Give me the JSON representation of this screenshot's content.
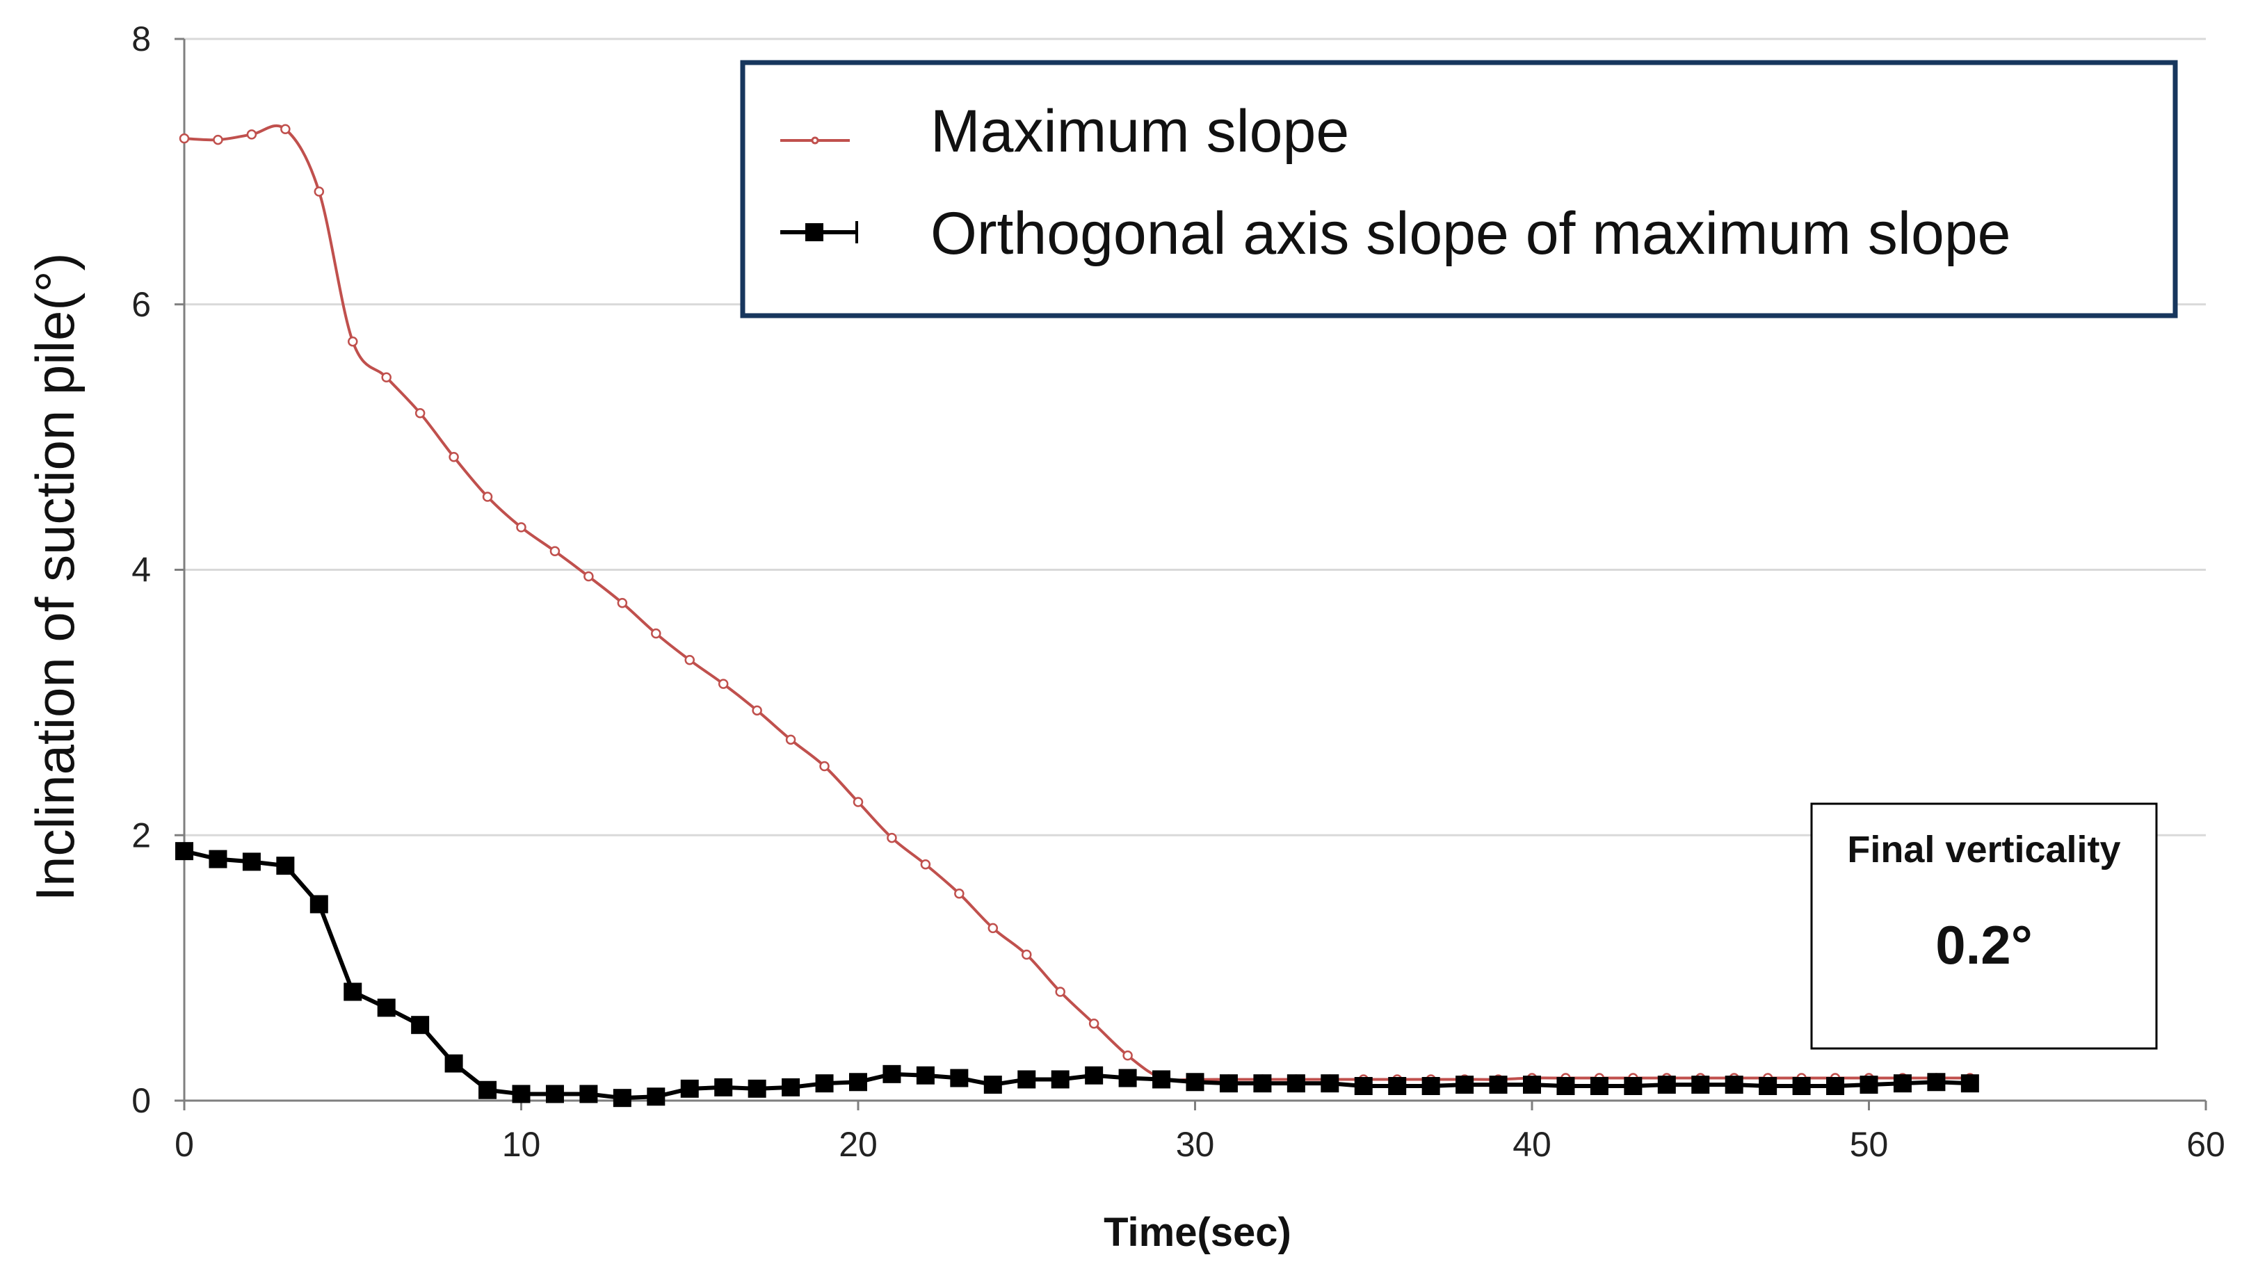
{
  "chart_data": {
    "type": "line",
    "xlabel": "Time(sec)",
    "ylabel": "Inclination of suction pile(°)",
    "xlim": [
      0,
      60
    ],
    "ylim": [
      0,
      8
    ],
    "xticks": [
      0,
      10,
      20,
      30,
      40,
      50,
      60
    ],
    "yticks": [
      0,
      2,
      4,
      6,
      8
    ],
    "grid": "horizontal",
    "legend_position": "top-right",
    "x": [
      0,
      1,
      2,
      3,
      4,
      5,
      6,
      7,
      8,
      9,
      10,
      11,
      12,
      13,
      14,
      15,
      16,
      17,
      18,
      19,
      20,
      21,
      22,
      23,
      24,
      25,
      26,
      27,
      28,
      29,
      30,
      31,
      32,
      33,
      34,
      35,
      36,
      37,
      38,
      39,
      40,
      41,
      42,
      43,
      44,
      45,
      46,
      47,
      48,
      49,
      50,
      51,
      52,
      53
    ],
    "series": [
      {
        "name": "Maximum slope",
        "color": "#c0504d",
        "marker": "open-circle",
        "smooth": true,
        "values": [
          7.25,
          7.24,
          7.28,
          7.32,
          6.85,
          5.72,
          5.45,
          5.18,
          4.85,
          4.55,
          4.32,
          4.14,
          3.95,
          3.75,
          3.52,
          3.32,
          3.14,
          2.94,
          2.72,
          2.52,
          2.25,
          1.98,
          1.78,
          1.56,
          1.3,
          1.1,
          0.82,
          0.58,
          0.34,
          0.17,
          0.16,
          0.16,
          0.16,
          0.16,
          0.16,
          0.16,
          0.16,
          0.16,
          0.16,
          0.16,
          0.17,
          0.17,
          0.17,
          0.17,
          0.17,
          0.17,
          0.17,
          0.17,
          0.17,
          0.17,
          0.17,
          0.17,
          0.17,
          0.17
        ]
      },
      {
        "name": "Orthogonal axis slope of maximum slope",
        "color": "#000000",
        "marker": "filled-square",
        "smooth": false,
        "values": [
          1.88,
          1.82,
          1.8,
          1.77,
          1.48,
          0.82,
          0.7,
          0.57,
          0.28,
          0.08,
          0.05,
          0.05,
          0.05,
          0.02,
          0.03,
          0.09,
          0.1,
          0.09,
          0.1,
          0.13,
          0.14,
          0.2,
          0.19,
          0.17,
          0.12,
          0.16,
          0.16,
          0.19,
          0.17,
          0.16,
          0.14,
          0.13,
          0.13,
          0.13,
          0.13,
          0.11,
          0.11,
          0.11,
          0.12,
          0.12,
          0.12,
          0.11,
          0.11,
          0.11,
          0.12,
          0.12,
          0.12,
          0.11,
          0.11,
          0.11,
          0.12,
          0.13,
          0.14,
          0.13
        ]
      }
    ],
    "annotation": {
      "title": "Final verticality",
      "value": "0.2°"
    }
  }
}
